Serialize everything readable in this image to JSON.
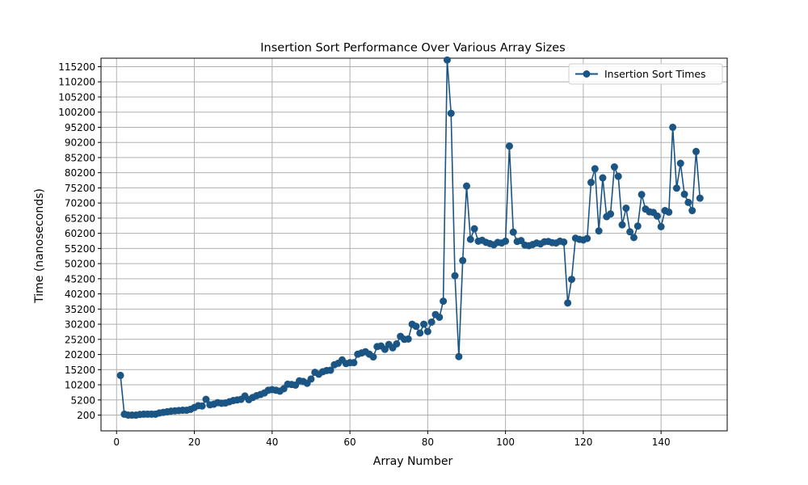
{
  "chart_data": {
    "type": "line",
    "title": "Insertion Sort Performance Over Various Array Sizes",
    "xlabel": "Array Number",
    "ylabel": "Time (nanoseconds)",
    "xlim": [
      -4,
      157
    ],
    "ylim": [
      -5000,
      118000
    ],
    "xticks": [
      0,
      20,
      40,
      60,
      80,
      100,
      120,
      140
    ],
    "yticks": [
      200,
      5200,
      10200,
      15200,
      20200,
      25200,
      30200,
      35200,
      40200,
      45200,
      50200,
      55200,
      60200,
      65200,
      70200,
      75200,
      80200,
      85200,
      90200,
      95200,
      100200,
      105200,
      110200,
      115200
    ],
    "grid": true,
    "legend_position": "top-right",
    "colors": {
      "line": "#1a5584",
      "grid": "#b0b0b0",
      "axes": "#000000"
    },
    "series": [
      {
        "name": "Insertion Sort Times",
        "marker": "circle",
        "x": [
          1,
          2,
          3,
          4,
          5,
          6,
          7,
          8,
          9,
          10,
          11,
          12,
          13,
          14,
          15,
          16,
          17,
          18,
          19,
          20,
          21,
          22,
          23,
          24,
          25,
          26,
          27,
          28,
          29,
          30,
          31,
          32,
          33,
          34,
          35,
          36,
          37,
          38,
          39,
          40,
          41,
          42,
          43,
          44,
          45,
          46,
          47,
          48,
          49,
          50,
          51,
          52,
          53,
          54,
          55,
          56,
          57,
          58,
          59,
          60,
          61,
          62,
          63,
          64,
          65,
          66,
          67,
          68,
          69,
          70,
          71,
          72,
          73,
          74,
          75,
          76,
          77,
          78,
          79,
          80,
          81,
          82,
          83,
          84,
          85,
          86,
          87,
          88,
          89,
          90,
          91,
          92,
          93,
          94,
          95,
          96,
          97,
          98,
          99,
          100,
          101,
          102,
          103,
          104,
          105,
          106,
          107,
          108,
          109,
          110,
          111,
          112,
          113,
          114,
          115,
          116,
          117,
          118,
          119,
          120,
          121,
          122,
          123,
          124,
          125,
          126,
          127,
          128,
          129,
          130,
          131,
          132,
          133,
          134,
          135,
          136,
          137,
          138,
          139,
          140,
          141,
          142,
          143,
          144,
          145,
          146,
          147,
          148,
          149,
          150
        ],
        "values": [
          13300,
          500,
          200,
          200,
          200,
          400,
          500,
          500,
          500,
          500,
          900,
          1100,
          1300,
          1500,
          1600,
          1700,
          1800,
          1800,
          2100,
          2700,
          3300,
          3200,
          5400,
          3600,
          3800,
          4300,
          4100,
          4200,
          4600,
          5000,
          5200,
          5400,
          6500,
          5300,
          6000,
          6600,
          7000,
          7500,
          8400,
          8600,
          8400,
          8100,
          8900,
          10400,
          10300,
          10100,
          11500,
          11300,
          10700,
          12100,
          14300,
          13700,
          14500,
          14900,
          15000,
          16800,
          17300,
          18400,
          17200,
          17500,
          17500,
          20300,
          20700,
          21100,
          20300,
          19400,
          22800,
          23000,
          21900,
          23500,
          22400,
          23700,
          26200,
          25200,
          25300,
          30200,
          29500,
          27300,
          30200,
          27800,
          30900,
          33400,
          32500,
          37800,
          117400,
          99800,
          46200,
          19500,
          51200,
          75800,
          58200,
          61700,
          57600,
          57900,
          57200,
          56800,
          56400,
          57200,
          57000,
          57600,
          89000,
          60600,
          57500,
          57800,
          56300,
          56100,
          56500,
          57000,
          56700,
          57400,
          57500,
          57100,
          57000,
          57600,
          57300,
          37200,
          45000,
          58600,
          58200,
          58000,
          58500,
          77000,
          81500,
          61000,
          78500,
          65700,
          66600,
          82100,
          79000,
          63000,
          68500,
          60700,
          58800,
          62600,
          73000,
          68200,
          67300,
          67100,
          65900,
          62400,
          67700,
          67200,
          95200,
          75100,
          83300,
          73100,
          70400,
          67700,
          87200,
          71800
        ]
      }
    ]
  }
}
